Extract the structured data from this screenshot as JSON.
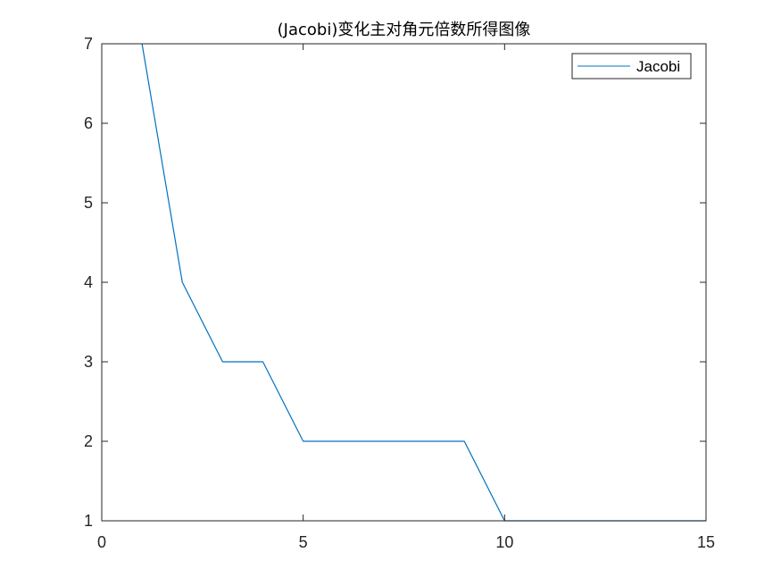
{
  "chart_data": {
    "type": "line",
    "title": "(Jacobi)变化主对角元倍数所得图像",
    "xlabel": "",
    "ylabel": "",
    "xlim": [
      0,
      15
    ],
    "ylim": [
      1,
      7
    ],
    "xticks": [
      0,
      5,
      10,
      15
    ],
    "yticks": [
      1,
      2,
      3,
      4,
      5,
      6,
      7
    ],
    "grid": false,
    "legend_position": "top-right",
    "series": [
      {
        "name": "Jacobi",
        "color": "#0072BD",
        "x": [
          1,
          2,
          3,
          4,
          5,
          6,
          7,
          8,
          9,
          10,
          11,
          12,
          13,
          14,
          15
        ],
        "y": [
          7,
          4,
          3,
          3,
          2,
          2,
          2,
          2,
          2,
          1,
          1,
          1,
          1,
          1,
          1
        ]
      }
    ]
  }
}
